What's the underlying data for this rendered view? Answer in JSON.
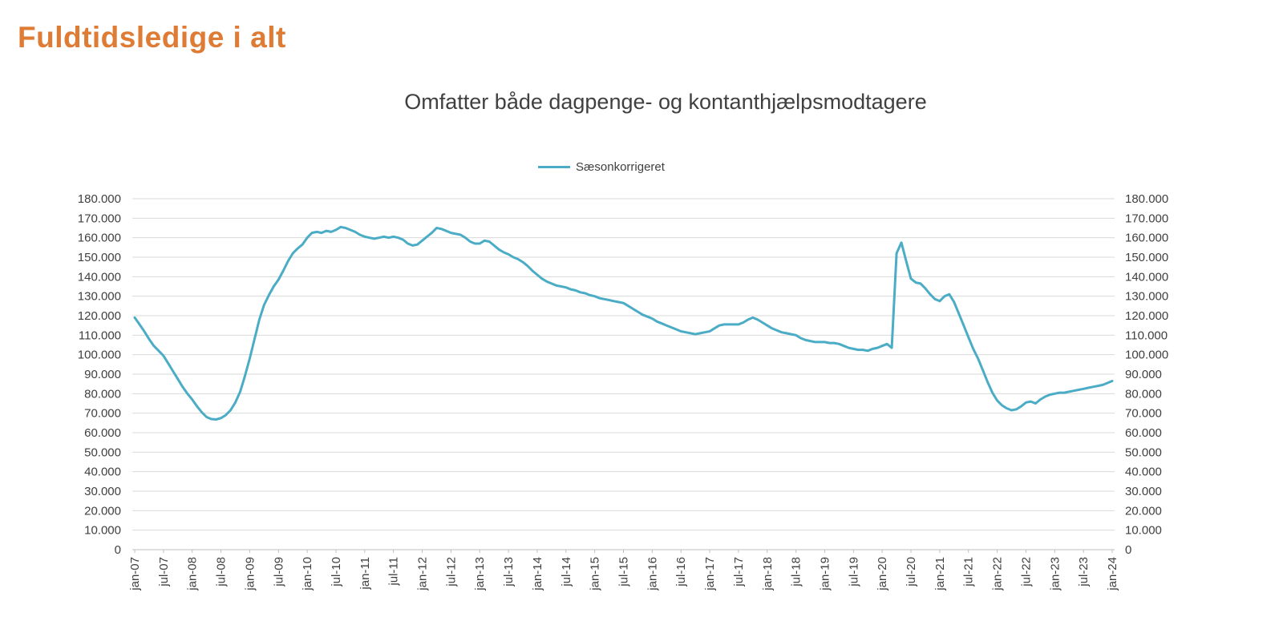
{
  "page": {
    "title": "Fuldtidsledige i alt",
    "subtitle": "Omfatter både dagpenge- og kontanthjælpsmodtagere"
  },
  "colors": {
    "title": "#DE7C35",
    "subtitle_text": "#404040",
    "axis_text": "#3F3F3F",
    "series_line": "#4BACC6"
  },
  "chart_data": {
    "type": "line",
    "title": "Omfatter både dagpenge- og kontanthjælpsmodtagere",
    "legend": {
      "position": "top-center",
      "entries": [
        "Sæsonkorrigeret"
      ]
    },
    "grid": true,
    "grid_color": "#D9D9D9",
    "axis_color": "#BFBFBF",
    "ylim": [
      0,
      180000
    ],
    "ytick_step": 10000,
    "y_axis_sides": [
      "left",
      "right"
    ],
    "x_frequency": "monthly",
    "x_start": "jan-07",
    "x_end": "jan-24",
    "x_tick_every": 6,
    "x_tick_labels": [
      "jan-07",
      "jul-07",
      "jan-08",
      "jul-08",
      "jan-09",
      "jul-09",
      "jan-10",
      "jul-10",
      "jan-11",
      "jul-11",
      "jan-12",
      "jul-12",
      "jan-13",
      "jul-13",
      "jan-14",
      "jul-14",
      "jan-15",
      "jul-15",
      "jan-16",
      "jul-16",
      "jan-17",
      "jul-17",
      "jan-18",
      "jul-18",
      "jan-19",
      "jul-19",
      "jan-20",
      "jul-20",
      "jan-21",
      "jul-21",
      "jan-22",
      "jul-22",
      "jan-23",
      "jul-23",
      "jan-24"
    ],
    "series": [
      {
        "name": "Sæsonkorrigeret",
        "color": "#4BACC6",
        "values": [
          119000,
          115500,
          112000,
          108000,
          104500,
          102000,
          99500,
          95500,
          91500,
          87500,
          83500,
          80000,
          77000,
          73500,
          70500,
          68000,
          67000,
          66800,
          67500,
          69000,
          71500,
          75500,
          81000,
          89000,
          98000,
          108000,
          118000,
          125500,
          130500,
          135000,
          138500,
          143000,
          148000,
          152000,
          154500,
          156500,
          160000,
          162500,
          163000,
          162500,
          163500,
          163000,
          164000,
          165500,
          165000,
          164000,
          163000,
          161500,
          160500,
          160000,
          159500,
          160000,
          160500,
          160000,
          160500,
          160000,
          159000,
          157000,
          156000,
          156500,
          158500,
          160500,
          162500,
          165000,
          164500,
          163500,
          162500,
          162000,
          161500,
          160000,
          158000,
          157000,
          157000,
          158500,
          158000,
          156000,
          154000,
          152500,
          151500,
          150000,
          149000,
          147500,
          145500,
          143000,
          141000,
          139000,
          137500,
          136500,
          135500,
          135000,
          134500,
          133500,
          133000,
          132000,
          131500,
          130500,
          130000,
          129000,
          128500,
          128000,
          127500,
          127000,
          126500,
          125000,
          123500,
          122000,
          120500,
          119500,
          118500,
          117000,
          116000,
          115000,
          114000,
          113000,
          112000,
          111500,
          111000,
          110500,
          111000,
          111500,
          112000,
          113500,
          115000,
          115500,
          115500,
          115500,
          115500,
          116500,
          118000,
          119000,
          118000,
          116500,
          115000,
          113500,
          112500,
          111500,
          111000,
          110500,
          110000,
          108500,
          107500,
          107000,
          106500,
          106500,
          106500,
          106000,
          106000,
          105500,
          104500,
          103500,
          103000,
          102500,
          102500,
          102000,
          103000,
          103500,
          104500,
          105500,
          103500,
          152000,
          157500,
          148000,
          139000,
          137000,
          136500,
          134000,
          131000,
          128500,
          127500,
          130000,
          131000,
          127000,
          121000,
          115000,
          109000,
          103000,
          98000,
          92000,
          86000,
          80500,
          76500,
          74000,
          72500,
          71500,
          72000,
          73500,
          75500,
          76000,
          75000,
          77000,
          78500,
          79500,
          80000,
          80500,
          80500,
          81000,
          81500,
          82000,
          82500,
          83000,
          83500,
          84000,
          84500,
          85500,
          86500
        ]
      }
    ]
  }
}
